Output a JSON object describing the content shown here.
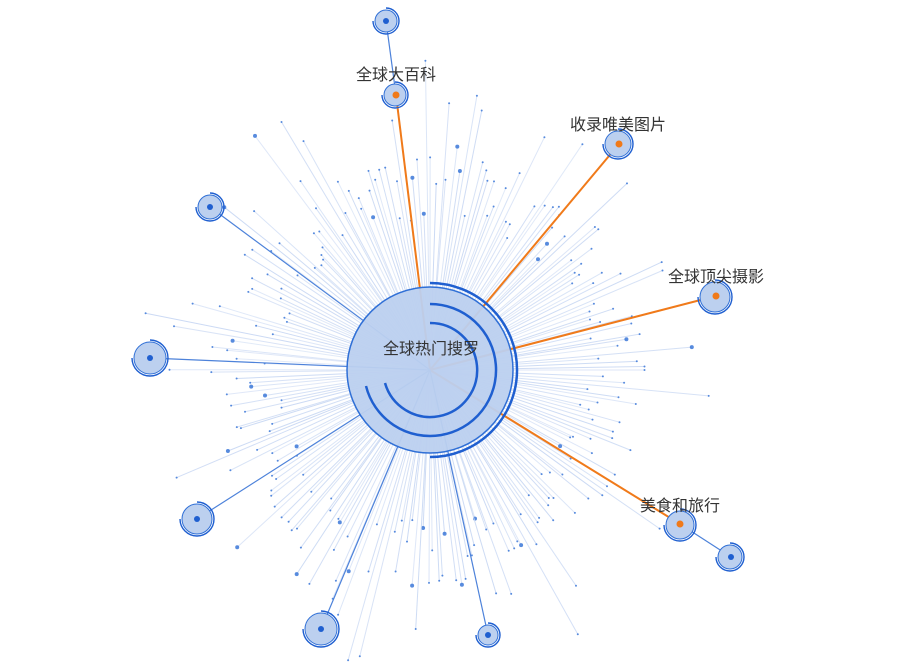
{
  "colors": {
    "node_fill": "#bcd0ef",
    "node_stroke": "#2f6fd6",
    "ring_stroke": "#1f5fd0",
    "spoke": "#c9d8f3",
    "edge_highlight": "#f07a1a",
    "edge_link": "#4d82da",
    "label_text": "#333333"
  },
  "graph": {
    "center_label": "全球热门搜罗",
    "nodes": [
      {
        "label": "全球大百科",
        "highlighted": true
      },
      {
        "label": "收录唯美图片",
        "highlighted": true
      },
      {
        "label": "全球顶尖摄影",
        "highlighted": true
      },
      {
        "label": "美食和旅行",
        "highlighted": true
      },
      {
        "label": "",
        "highlighted": false
      },
      {
        "label": "",
        "highlighted": false
      },
      {
        "label": "",
        "highlighted": false
      },
      {
        "label": "",
        "highlighted": false
      },
      {
        "label": "",
        "highlighted": false
      },
      {
        "label": "",
        "highlighted": false
      },
      {
        "label": "",
        "highlighted": false
      }
    ]
  }
}
